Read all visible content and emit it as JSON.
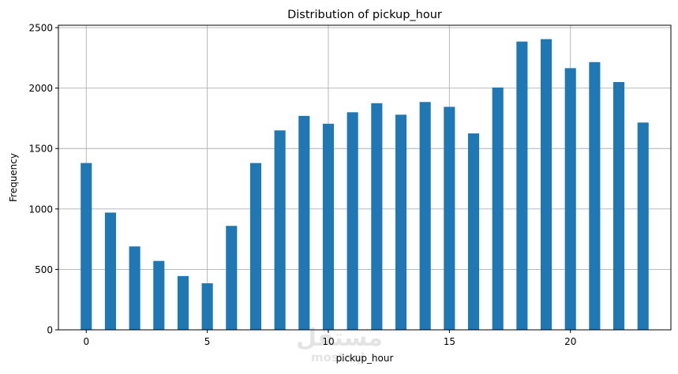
{
  "chart_data": {
    "type": "bar",
    "title": "Distribution of pickup_hour",
    "xlabel": "pickup_hour",
    "ylabel": "Frequency",
    "x": [
      0,
      1,
      2,
      3,
      4,
      5,
      6,
      7,
      8,
      9,
      10,
      11,
      12,
      13,
      14,
      15,
      16,
      17,
      18,
      19,
      20,
      21,
      22,
      23
    ],
    "values": [
      1380,
      970,
      690,
      570,
      445,
      385,
      860,
      1380,
      1650,
      1770,
      1705,
      1800,
      1875,
      1780,
      1885,
      1845,
      1625,
      2005,
      2385,
      2405,
      2165,
      2215,
      2050,
      1715
    ],
    "xticks": [
      0,
      5,
      10,
      15,
      20
    ],
    "yticks": [
      0,
      500,
      1000,
      1500,
      2000,
      2500
    ],
    "xlim": [
      -1.15,
      24.15
    ],
    "ylim": [
      0,
      2520
    ],
    "grid": true,
    "legend": "none",
    "colors": {
      "bar": "#1f77b4",
      "grid": "#b0b0b0",
      "axis": "#000000"
    },
    "watermark": "mostaql"
  }
}
